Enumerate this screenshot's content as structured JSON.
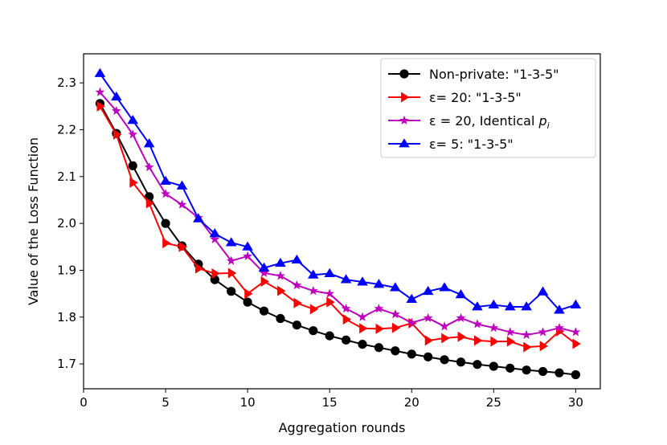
{
  "chart_data": {
    "type": "line",
    "title": "",
    "xlabel": "Aggregation rounds",
    "ylabel": "Value of the Loss Function",
    "xlim": [
      0,
      31.5
    ],
    "ylim": [
      1.647,
      2.362
    ],
    "xticks": [
      0,
      5,
      10,
      15,
      20,
      25,
      30
    ],
    "xtick_labels": [
      "0",
      "5",
      "10",
      "15",
      "20",
      "25",
      "30"
    ],
    "yticks": [
      1.7,
      1.8,
      1.9,
      2.0,
      2.1,
      2.2,
      2.3
    ],
    "ytick_labels": [
      "1.7",
      "1.8",
      "1.9",
      "2.0",
      "2.1",
      "2.2",
      "2.3"
    ],
    "grid": false,
    "legend_position": "top-right",
    "x": [
      1,
      2,
      3,
      4,
      5,
      6,
      7,
      8,
      9,
      10,
      11,
      12,
      13,
      14,
      15,
      16,
      17,
      18,
      19,
      20,
      21,
      22,
      23,
      24,
      25,
      26,
      27,
      28,
      29,
      30
    ],
    "series": [
      {
        "name": "Non-private: \"1-3-5\"",
        "color": "#000000",
        "marker": "circle",
        "values": [
          2.256,
          2.192,
          2.123,
          2.057,
          2.0,
          1.952,
          1.913,
          1.88,
          1.855,
          1.832,
          1.813,
          1.797,
          1.783,
          1.771,
          1.76,
          1.751,
          1.742,
          1.735,
          1.728,
          1.721,
          1.715,
          1.709,
          1.704,
          1.699,
          1.695,
          1.691,
          1.687,
          1.684,
          1.681,
          1.677
        ]
      },
      {
        "name": "ε= 20: \"1-3-5\"",
        "color": "#ff0000",
        "marker": "triangle-right",
        "values": [
          2.25,
          2.19,
          2.087,
          2.043,
          1.958,
          1.95,
          1.904,
          1.893,
          1.894,
          1.85,
          1.876,
          1.856,
          1.83,
          1.817,
          1.832,
          1.795,
          1.776,
          1.775,
          1.777,
          1.787,
          1.75,
          1.755,
          1.758,
          1.75,
          1.748,
          1.748,
          1.736,
          1.738,
          1.77,
          1.743
        ]
      },
      {
        "name": "ε = 20, Identical ",
        "name_math": "p",
        "name_sub": "i",
        "color": "#bf00bf",
        "marker": "star",
        "values": [
          2.28,
          2.24,
          2.19,
          2.12,
          2.063,
          2.04,
          2.012,
          1.966,
          1.92,
          1.93,
          1.894,
          1.888,
          1.868,
          1.856,
          1.85,
          1.818,
          1.8,
          1.818,
          1.806,
          1.788,
          1.798,
          1.78,
          1.798,
          1.785,
          1.777,
          1.768,
          1.762,
          1.768,
          1.777,
          1.768
        ]
      },
      {
        "name": "ε= 5: \"1-3-5\"",
        "color": "#0000ff",
        "marker": "triangle-up",
        "values": [
          2.32,
          2.27,
          2.22,
          2.17,
          2.09,
          2.08,
          2.01,
          1.978,
          1.959,
          1.95,
          1.905,
          1.915,
          1.922,
          1.89,
          1.893,
          1.88,
          1.875,
          1.87,
          1.863,
          1.838,
          1.855,
          1.863,
          1.848,
          1.822,
          1.826,
          1.822,
          1.822,
          1.854,
          1.815,
          1.826
        ]
      }
    ]
  }
}
